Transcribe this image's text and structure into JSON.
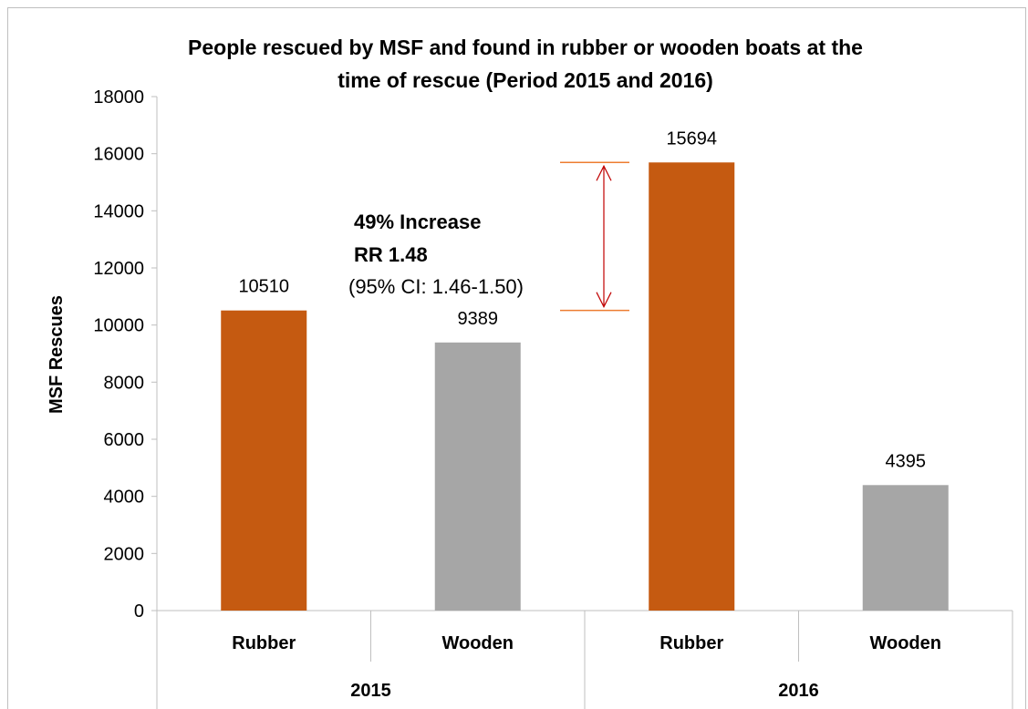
{
  "chart_data": {
    "type": "bar",
    "title_line1": "People rescued by MSF and found in rubber or wooden boats at the",
    "title_line2": "time of rescue  (Period  2015 and 2016)",
    "ylabel": "MSF Rescues",
    "xlabel": "",
    "ylim": [
      0,
      18000
    ],
    "yticks": [
      0,
      2000,
      4000,
      6000,
      8000,
      10000,
      12000,
      14000,
      16000,
      18000
    ],
    "grid": false,
    "groups": [
      {
        "label": "2015",
        "bars": [
          {
            "category": "Rubber",
            "value": 10510,
            "label": "10510",
            "color": "#c55a11"
          },
          {
            "category": "Wooden",
            "value": 9389,
            "label": "9389",
            "color": "#a6a6a6"
          }
        ]
      },
      {
        "label": "2016",
        "bars": [
          {
            "category": "Rubber",
            "value": 15694,
            "label": "15694",
            "color": "#c55a11"
          },
          {
            "category": "Wooden",
            "value": 4395,
            "label": "4395",
            "color": "#a6a6a6"
          }
        ]
      }
    ],
    "annotation": {
      "line1": "49% Increase",
      "line2": "RR 1.48",
      "line3": "(95% CI: 1.46-1.50)",
      "from_value": 10510,
      "to_value": 15694,
      "arrow_color": "#c00000",
      "ref_line_color": "#ed7d31"
    }
  }
}
